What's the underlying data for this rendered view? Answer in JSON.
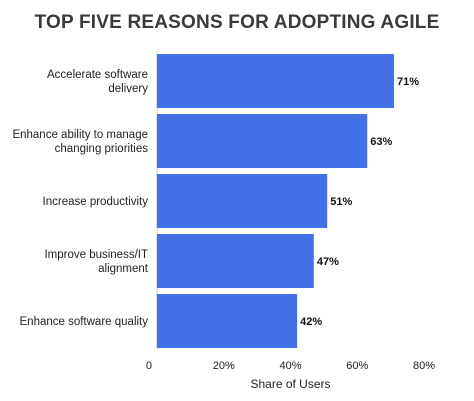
{
  "chart_data": {
    "type": "bar",
    "orientation": "horizontal",
    "title": "TOP FIVE REASONS FOR ADOPTING AGILE",
    "xlabel": "Share of Users",
    "ylabel": "",
    "categories": [
      [
        "Accelerate software",
        "delivery"
      ],
      [
        "Enhance ability to manage",
        "changing priorities"
      ],
      [
        "Increase productivity"
      ],
      [
        "Improve business/IT",
        "alignment"
      ],
      [
        "Enhance software quality"
      ]
    ],
    "values": [
      71,
      63,
      51,
      47,
      42
    ],
    "value_labels": [
      "71%",
      "63%",
      "51%",
      "47%",
      "42%"
    ],
    "xlim": [
      0,
      80
    ],
    "ticks": [
      0,
      20,
      40,
      60,
      80
    ],
    "tick_labels": [
      "0",
      "20%",
      "40%",
      "60%",
      "80%"
    ],
    "bar_color": "#4472e6",
    "grid": false,
    "legend": "none"
  }
}
